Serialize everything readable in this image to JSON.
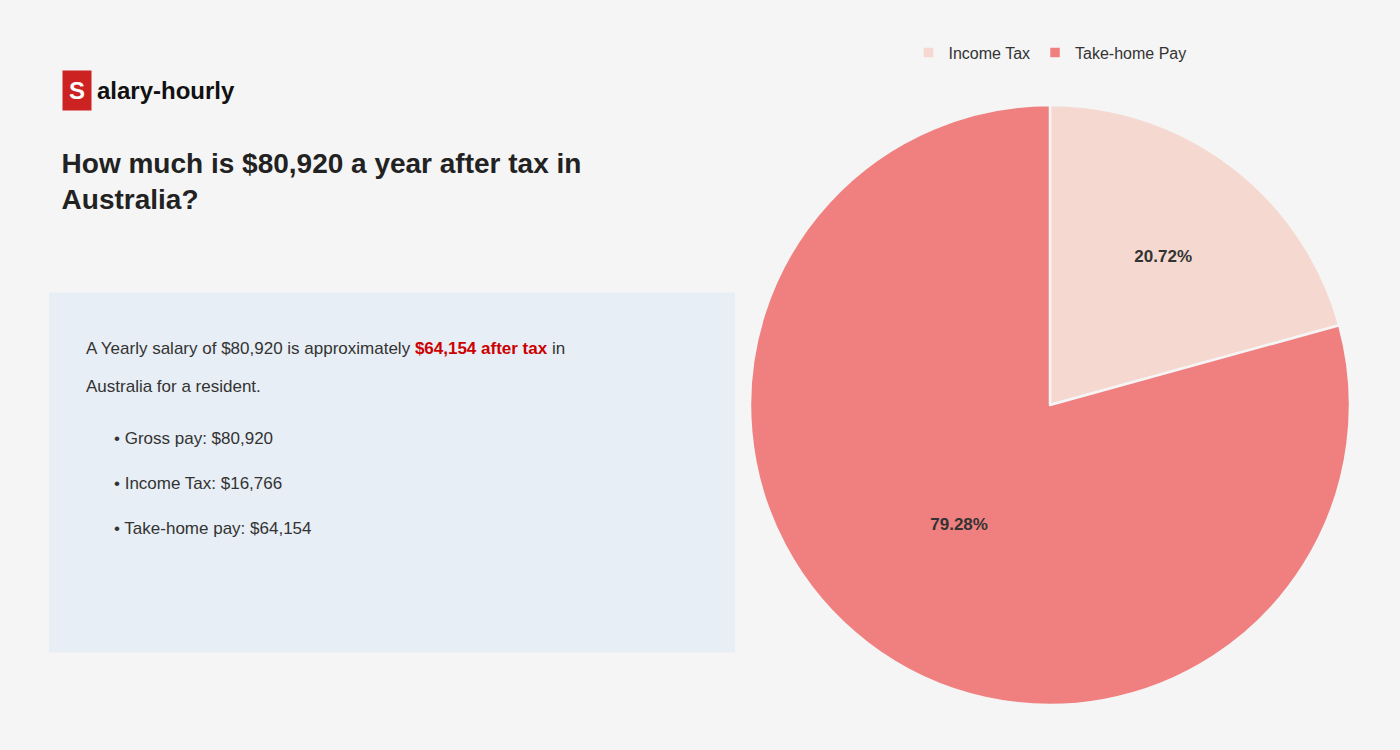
{
  "chart_data": {
    "type": "pie",
    "title": "How much is $80,920 a year after tax in\nAustralia?",
    "categories": [
      "Income Tax",
      "Take-home Pay"
    ],
    "values": [
      20.72,
      79.28
    ],
    "value_labels": [
      "20.72%",
      "79.28%"
    ],
    "colors": [
      "#f5d9d0",
      "#f08080"
    ],
    "data_labels": true,
    "legend": "top",
    "annotations": [
      {
        "text": "S"
      },
      {
        "text": "alary-hourly"
      },
      {
        "text": "A Yearly salary of $80,920 is approximately "
      },
      {
        "text": "$64,154 after tax",
        "color": "#cc0000"
      },
      {
        "text": " in"
      },
      {
        "text": "Australia for a resident."
      },
      {
        "text": "• Gross pay: $80,920"
      },
      {
        "text": "• Income Tax: $16,766"
      },
      {
        "text": "• Take-home pay: $64,154"
      }
    ]
  }
}
